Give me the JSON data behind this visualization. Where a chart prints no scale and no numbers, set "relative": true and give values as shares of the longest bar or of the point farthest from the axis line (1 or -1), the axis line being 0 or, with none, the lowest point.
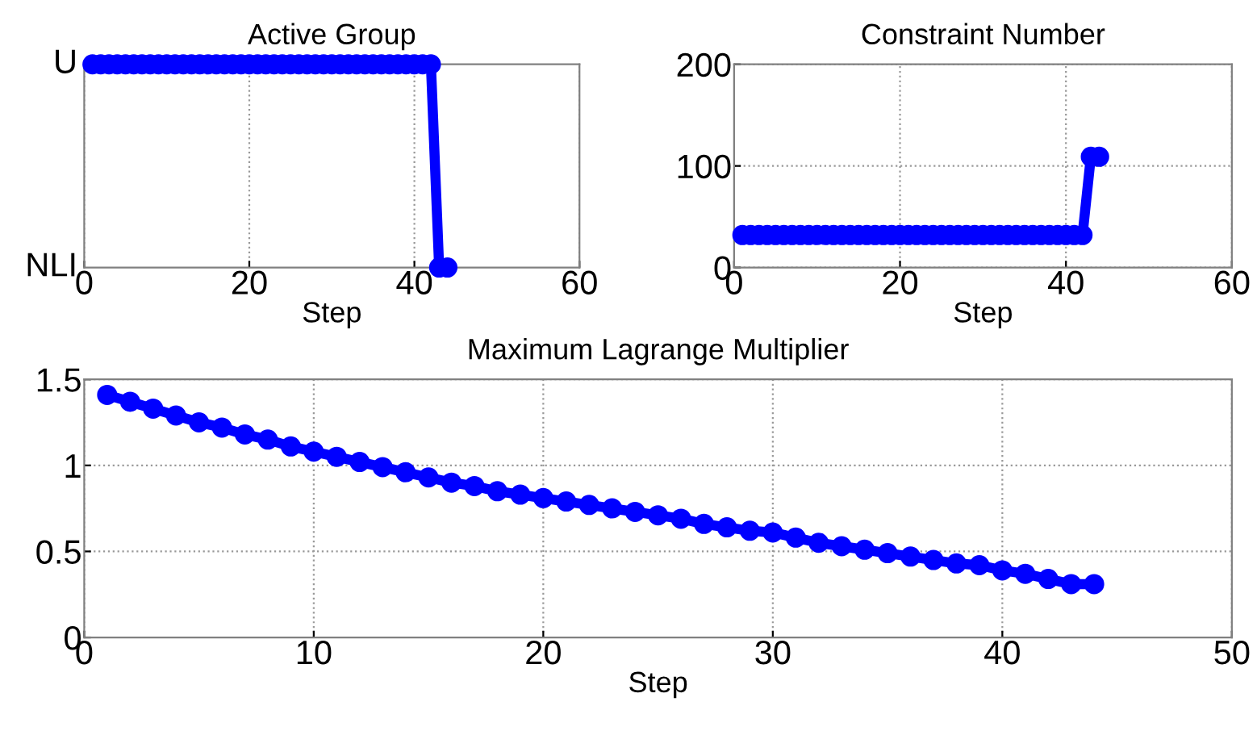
{
  "chart_data": [
    {
      "type": "line",
      "title": "Active Group",
      "xlabel": "Step",
      "x": [
        1,
        2,
        3,
        4,
        5,
        6,
        7,
        8,
        9,
        10,
        11,
        12,
        13,
        14,
        15,
        16,
        17,
        18,
        19,
        20,
        21,
        22,
        23,
        24,
        25,
        26,
        27,
        28,
        29,
        30,
        31,
        32,
        33,
        34,
        35,
        36,
        37,
        38,
        39,
        40,
        41,
        42,
        43,
        44
      ],
      "series": [
        {
          "color": "#0000ff",
          "values": [
            1,
            1,
            1,
            1,
            1,
            1,
            1,
            1,
            1,
            1,
            1,
            1,
            1,
            1,
            1,
            1,
            1,
            1,
            1,
            1,
            1,
            1,
            1,
            1,
            1,
            1,
            1,
            1,
            1,
            1,
            1,
            1,
            1,
            1,
            1,
            1,
            1,
            1,
            1,
            1,
            1,
            1,
            0,
            0
          ]
        }
      ],
      "relative": true,
      "annotations": [
        "U",
        "NLI"
      ],
      "xlim": [
        0,
        60
      ],
      "xticks": [
        0,
        20,
        40,
        60
      ],
      "grid": true,
      "marker": "circle",
      "line_style": "solid"
    },
    {
      "type": "line",
      "title": "Constraint Number",
      "xlabel": "Step",
      "x": [
        1,
        2,
        3,
        4,
        5,
        6,
        7,
        8,
        9,
        10,
        11,
        12,
        13,
        14,
        15,
        16,
        17,
        18,
        19,
        20,
        21,
        22,
        23,
        24,
        25,
        26,
        27,
        28,
        29,
        30,
        31,
        32,
        33,
        34,
        35,
        36,
        37,
        38,
        39,
        40,
        41,
        42,
        43,
        44
      ],
      "series": [
        {
          "color": "#0000ff",
          "values": [
            32,
            32,
            32,
            32,
            32,
            32,
            32,
            32,
            32,
            32,
            32,
            32,
            32,
            32,
            32,
            32,
            32,
            32,
            32,
            32,
            32,
            32,
            32,
            32,
            32,
            32,
            32,
            32,
            32,
            32,
            32,
            32,
            32,
            32,
            32,
            32,
            32,
            32,
            32,
            32,
            32,
            32,
            109,
            109
          ]
        }
      ],
      "xlim": [
        0,
        60
      ],
      "xticks": [
        0,
        20,
        40,
        60
      ],
      "ylim": [
        0,
        200
      ],
      "yticks": [
        0,
        100,
        200
      ],
      "grid": true,
      "marker": "circle",
      "line_style": "solid"
    },
    {
      "type": "line",
      "title": "Maximum Lagrange Multiplier",
      "xlabel": "Step",
      "x": [
        1,
        2,
        3,
        4,
        5,
        6,
        7,
        8,
        9,
        10,
        11,
        12,
        13,
        14,
        15,
        16,
        17,
        18,
        19,
        20,
        21,
        22,
        23,
        24,
        25,
        26,
        27,
        28,
        29,
        30,
        31,
        32,
        33,
        34,
        35,
        36,
        37,
        38,
        39,
        40,
        41,
        42,
        43,
        44
      ],
      "series": [
        {
          "color": "#0000ff",
          "values": [
            1.41,
            1.37,
            1.33,
            1.29,
            1.25,
            1.22,
            1.18,
            1.15,
            1.11,
            1.08,
            1.05,
            1.02,
            0.99,
            0.96,
            0.93,
            0.9,
            0.88,
            0.85,
            0.83,
            0.81,
            0.79,
            0.77,
            0.75,
            0.73,
            0.71,
            0.69,
            0.66,
            0.64,
            0.62,
            0.61,
            0.58,
            0.55,
            0.53,
            0.51,
            0.49,
            0.47,
            0.45,
            0.43,
            0.42,
            0.39,
            0.37,
            0.34,
            0.31,
            0.31
          ]
        }
      ],
      "xlim": [
        0,
        50
      ],
      "xticks": [
        0,
        10,
        20,
        30,
        40,
        50
      ],
      "ylim": [
        0,
        1.5
      ],
      "yticks": [
        0,
        0.5,
        1,
        1.5
      ],
      "grid": true,
      "marker": "circle",
      "line_style": "solid"
    }
  ]
}
